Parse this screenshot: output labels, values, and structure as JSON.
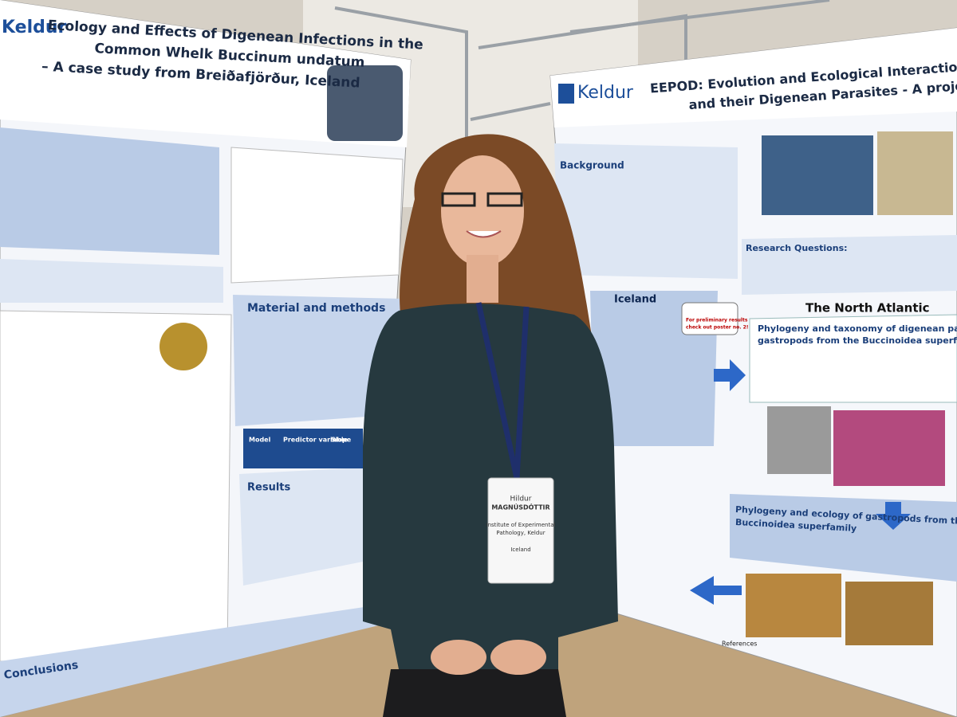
{
  "left_poster": {
    "logo": "Keldur",
    "title_lines": [
      "Ecology and Effects of Digenean Infections in the",
      "Common Whelk Buccinum undatum",
      "– A case study from Breiðafjörður, Iceland"
    ],
    "sections": [
      "Material and methods",
      "Results",
      "Conclusions"
    ],
    "table_headers": [
      "Model",
      "Predictor variable",
      "Slope"
    ]
  },
  "right_poster": {
    "logo": "Keldur",
    "title_lines": [
      "EEPOD: Evolution and Ecological Interactions of Subtidal Gastro",
      "and their Digenean Parasites - A project overview"
    ],
    "sections": [
      "Background",
      "Research Questions:",
      "Iceland",
      "The North Atlantic",
      "Phylogeny and taxonomy of digenean parasites o",
      "gastropods from the Buccinoidea superfamily",
      "Phylogeny and ecology of gastropods from the",
      "Buccinoidea superfamily",
      "References"
    ],
    "note_lines": [
      "For preliminary results",
      "check out poster no. 2!"
    ]
  },
  "badge": {
    "name_lines": [
      "Hildur",
      "MAGNÚSDÓTTIR"
    ],
    "affiliation_lines": [
      "Institute of Experimental",
      "Pathology, Keldur"
    ],
    "country": "Iceland"
  }
}
